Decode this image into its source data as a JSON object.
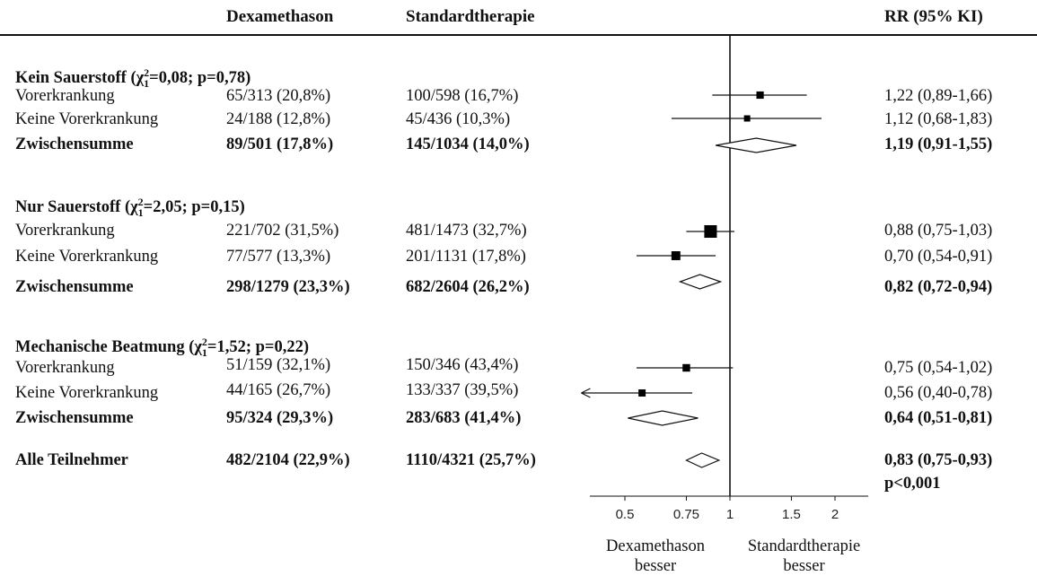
{
  "header": {
    "col_dexa": "Dexamethason",
    "col_std": "Standardtherapie",
    "col_rr": "RR (95% KI)"
  },
  "groups": [
    {
      "title_prefix": "Kein Sauerstoff (χ",
      "title_suffix": "=0,08; p=0,78)",
      "rows": [
        {
          "label": "Vorerkrankung",
          "dexa": "65/313 (20,8%)",
          "std": "100/598 (16,7%)",
          "rr_text": "1,22 (0,89-1,66)",
          "bold": false
        },
        {
          "label": "Keine Vorerkrankung",
          "dexa": "24/188 (12,8%)",
          "std": "45/436 (10,3%)",
          "rr_text": "1,12 (0,68-1,83)",
          "bold": false
        },
        {
          "label": "Zwischensumme",
          "dexa": "89/501 (17,8%)",
          "std": "145/1034 (14,0%)",
          "rr_text": "1,19 (0,91-1,55)",
          "bold": true
        }
      ]
    },
    {
      "title_prefix": "Nur Sauerstoff (χ",
      "title_suffix": "=2,05; p=0,15)",
      "rows": [
        {
          "label": "Vorerkrankung",
          "dexa": "221/702 (31,5%)",
          "std": "481/1473 (32,7%)",
          "rr_text": "0,88 (0,75-1,03)",
          "bold": false
        },
        {
          "label": "Keine Vorerkrankung",
          "dexa": "77/577 (13,3%)",
          "std": "201/1131 (17,8%)",
          "rr_text": "0,70 (0,54-0,91)",
          "bold": false
        },
        {
          "label": "Zwischensumme",
          "dexa": "298/1279 (23,3%)",
          "std": "682/2604 (26,2%)",
          "rr_text": "0,82 (0,72-0,94)",
          "bold": true
        }
      ]
    },
    {
      "title_prefix": "Mechanische Beatmung (χ",
      "title_suffix": "=1,52; p=0,22)",
      "rows": [
        {
          "label": "Vorerkrankung",
          "dexa": "51/159 (32,1%)",
          "std": "150/346 (43,4%)",
          "rr_text": "0,75 (0,54-1,02)",
          "bold": false
        },
        {
          "label": "Keine Vorerkrankung",
          "dexa": "44/165 (26,7%)",
          "std": "133/337 (39,5%)",
          "rr_text": "0,56 (0,40-0,78)",
          "bold": false
        },
        {
          "label": "Zwischensumme",
          "dexa": "95/324 (29,3%)",
          "std": "283/683 (41,4%)",
          "rr_text": "0,64 (0,51-0,81)",
          "bold": true
        }
      ]
    }
  ],
  "chi_sub": "1",
  "chi_sup": "2",
  "overall": {
    "label": "Alle Teilnehmer",
    "dexa": "482/2104 (22,9%)",
    "std": "1110/4321 (25,7%)",
    "rr_text": "0,83 (0,75-0,93)",
    "p_text": "p<0,001"
  },
  "footer": {
    "left_label_line1": "Dexamethason",
    "left_label_line2": "besser",
    "right_label_line1": "Standardtherapie",
    "right_label_line2": "besser"
  },
  "chart_data": {
    "type": "forest",
    "x_scale": "log",
    "xlim": [
      0.375,
      2.0
    ],
    "reference_line": 1,
    "xticks": [
      0.5,
      0.75,
      1,
      1.5,
      2
    ],
    "xtick_labels": [
      "0.5",
      "0.75",
      "1",
      "1.5",
      "2"
    ],
    "estimates": [
      {
        "group": 0,
        "row": 0,
        "rr": 1.22,
        "lo": 0.89,
        "hi": 1.66,
        "kind": "square",
        "weight": 0.35
      },
      {
        "group": 0,
        "row": 1,
        "rr": 1.12,
        "lo": 0.68,
        "hi": 1.83,
        "kind": "square",
        "weight": 0.22
      },
      {
        "group": 0,
        "row": 2,
        "rr": 1.19,
        "lo": 0.91,
        "hi": 1.55,
        "kind": "diamond"
      },
      {
        "group": 1,
        "row": 0,
        "rr": 0.88,
        "lo": 0.75,
        "hi": 1.03,
        "kind": "square",
        "weight": 1.0
      },
      {
        "group": 1,
        "row": 1,
        "rr": 0.7,
        "lo": 0.54,
        "hi": 0.91,
        "kind": "square",
        "weight": 0.55
      },
      {
        "group": 1,
        "row": 2,
        "rr": 0.82,
        "lo": 0.72,
        "hi": 0.94,
        "kind": "diamond"
      },
      {
        "group": 2,
        "row": 0,
        "rr": 0.75,
        "lo": 0.54,
        "hi": 1.02,
        "kind": "square",
        "weight": 0.38
      },
      {
        "group": 2,
        "row": 1,
        "rr": 0.56,
        "lo": 0.4,
        "hi": 0.78,
        "kind": "square",
        "weight": 0.33,
        "arrow_left": true
      },
      {
        "group": 2,
        "row": 2,
        "rr": 0.64,
        "lo": 0.51,
        "hi": 0.81,
        "kind": "diamond"
      },
      {
        "group": "overall",
        "rr": 0.83,
        "lo": 0.75,
        "hi": 0.93,
        "kind": "diamond"
      }
    ]
  }
}
